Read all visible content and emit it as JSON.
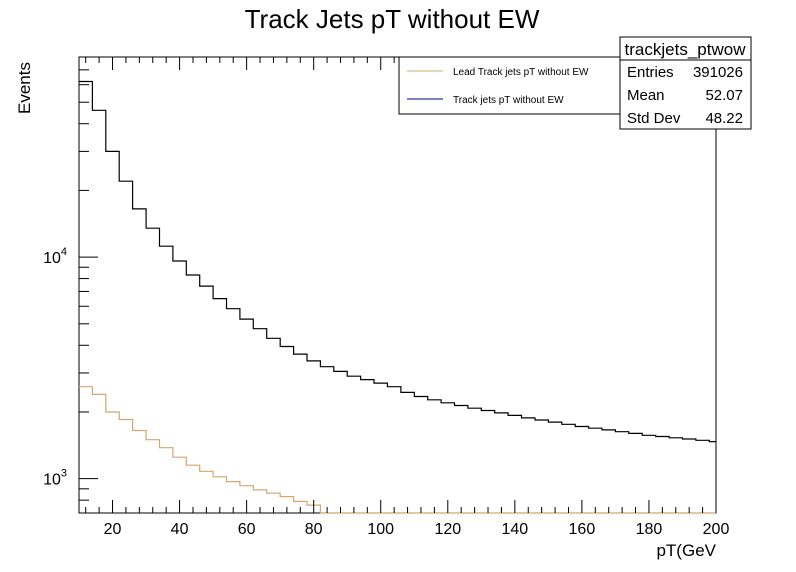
{
  "chart_data": {
    "type": "line",
    "title": "Track Jets pT without EW",
    "xlabel": "pT(GeV",
    "ylabel": "Events",
    "xlim": [
      10,
      200
    ],
    "ylim": [
      700,
      80000
    ],
    "yscale": "log",
    "x_ticks": [
      "20",
      "40",
      "60",
      "80",
      "100",
      "120",
      "140",
      "160",
      "180",
      "200"
    ],
    "y_ticks": [
      {
        "base": "10",
        "exp": "3",
        "value": 1000
      },
      {
        "base": "10",
        "exp": "4",
        "value": 10000
      }
    ],
    "bin_width": 4,
    "bin_start": 10,
    "series": [
      {
        "name": "Track jets pT without EW",
        "color": "#000000",
        "values": [
          62000,
          46000,
          30000,
          22000,
          16500,
          13500,
          11200,
          9600,
          8300,
          7400,
          6500,
          5850,
          5250,
          4750,
          4300,
          3950,
          3650,
          3400,
          3200,
          3050,
          2900,
          2800,
          2700,
          2600,
          2450,
          2350,
          2270,
          2200,
          2140,
          2080,
          2030,
          1980,
          1930,
          1880,
          1840,
          1800,
          1760,
          1720,
          1690,
          1660,
          1630,
          1600,
          1570,
          1550,
          1530,
          1510,
          1490,
          1470
        ]
      },
      {
        "name": "Lead Track jets pT without EW",
        "color": "#d2a86e",
        "values": [
          2600,
          2400,
          2000,
          1850,
          1650,
          1500,
          1380,
          1250,
          1150,
          1080,
          1020,
          970,
          930,
          890,
          860,
          830,
          790,
          760,
          700,
          680,
          670,
          660,
          660,
          660,
          660,
          660,
          660,
          660,
          660,
          660,
          660,
          660,
          660,
          660,
          660,
          660,
          660,
          660,
          660,
          660,
          660,
          660,
          660,
          660,
          660,
          660,
          660,
          660
        ]
      }
    ],
    "legend": {
      "position": "top-right",
      "entries": [
        "Lead Track jets pT without EW",
        "Track jets pT without EW"
      ]
    },
    "stats_box": {
      "title": "trackjets_ptwow",
      "rows": [
        {
          "label": "Entries",
          "value": "391026"
        },
        {
          "label": "Mean",
          "value": "52.07"
        },
        {
          "label": "Std Dev",
          "value": "48.22"
        }
      ]
    }
  }
}
